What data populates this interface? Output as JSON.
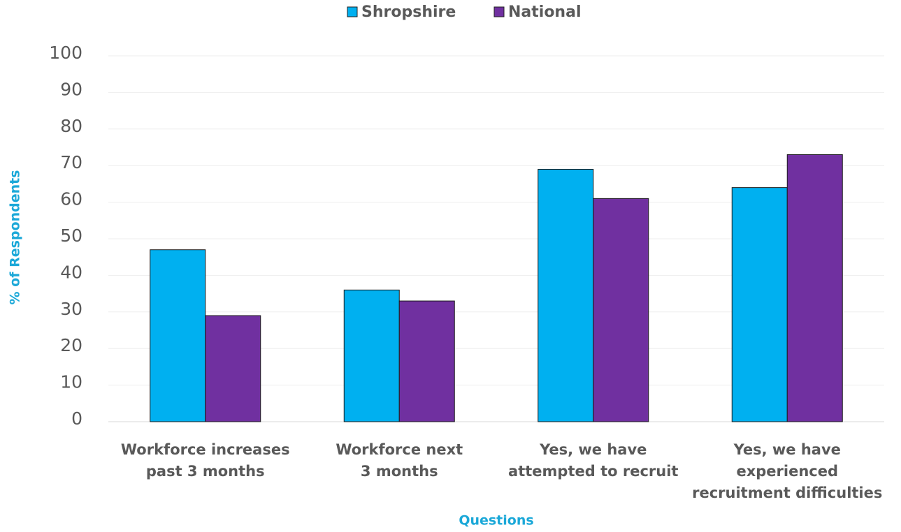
{
  "chart_data": {
    "type": "bar",
    "categories": [
      [
        "Workforce increases",
        "past 3 months"
      ],
      [
        "Workforce next",
        "3 months"
      ],
      [
        "Yes, we have",
        "attempted to recruit"
      ],
      [
        "Yes, we have",
        "experienced",
        "recruitment difficulties"
      ]
    ],
    "series": [
      {
        "name": "Shropshire",
        "color": "#00b0f0",
        "values": [
          47,
          36,
          69,
          64
        ]
      },
      {
        "name": "National",
        "color": "#7030a0",
        "values": [
          29,
          33,
          61,
          73
        ]
      }
    ],
    "ylim": [
      0,
      100
    ],
    "yticks": [
      0,
      10,
      20,
      30,
      40,
      50,
      60,
      70,
      80,
      90,
      100
    ],
    "grid": true,
    "ylabel": "% of Respondents",
    "xlabel": "Questions",
    "legend": "top"
  }
}
